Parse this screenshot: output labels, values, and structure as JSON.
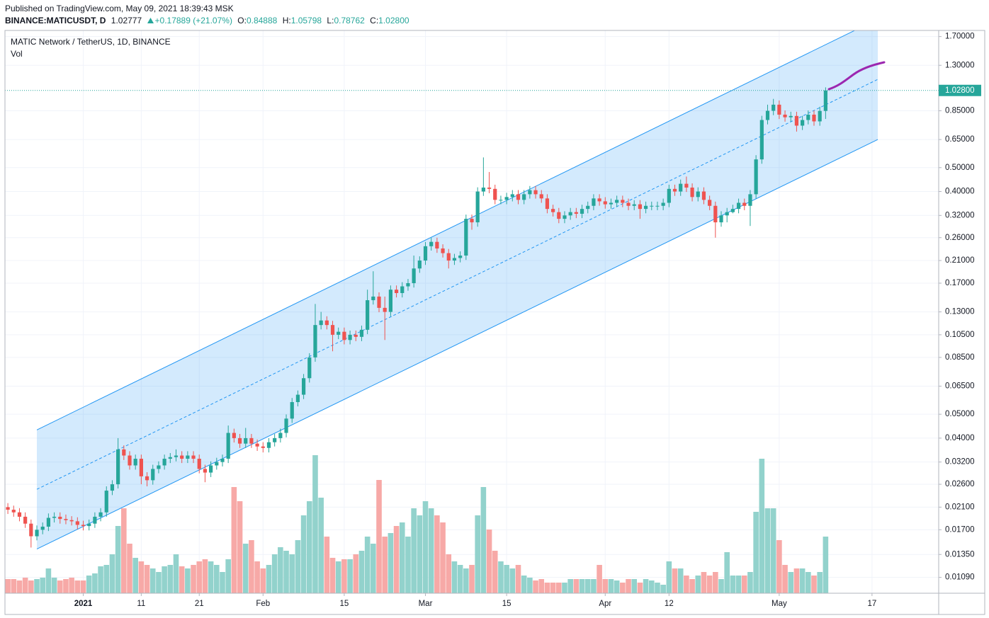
{
  "header": {
    "published": "Published on TradingView.com, May 09, 2021 18:39:43 MSK",
    "symbol": "BINANCE:MATICUSDT, D",
    "price": "1.02777",
    "change": "+0.17889 (+21.07%)",
    "ohlc_keys": [
      "O:",
      "H:",
      "L:",
      "C:"
    ]
  },
  "chart_data": {
    "type": "candlestick",
    "title": "MATIC Network / TetherUS, 1D, BINANCE",
    "volume_title": "Vol",
    "log_scale": true,
    "grid": true,
    "up_color": "#26a69a",
    "down_color": "#ef5350",
    "up_volume_color": "#92d2cc",
    "down_volume_color": "#f7a9a7",
    "xlim": [
      "2020-12-18T12:00",
      "2021-05-28T12:00"
    ],
    "xticks": [
      {
        "value": "2021-01-01",
        "label": "2021"
      },
      {
        "value": "2021-01-11",
        "label": "11"
      },
      {
        "value": "2021-01-21",
        "label": "21"
      },
      {
        "value": "2021-02-01",
        "label": "Feb"
      },
      {
        "value": "2021-02-15",
        "label": "15"
      },
      {
        "value": "2021-03-01",
        "label": "Mar"
      },
      {
        "value": "2021-03-15",
        "label": "15"
      },
      {
        "value": "2021-04-01",
        "label": "Apr"
      },
      {
        "value": "2021-04-12",
        "label": "12"
      },
      {
        "value": "2021-05-01",
        "label": "May"
      },
      {
        "value": "2021-05-17",
        "label": "17"
      }
    ],
    "ylim": [
      0.0094,
      1.8
    ],
    "yticks": [
      {
        "value": 1.7,
        "label": "1.70000"
      },
      {
        "value": 1.3,
        "label": "1.30000"
      },
      {
        "value": 0.85,
        "label": "0.85000"
      },
      {
        "value": 0.65,
        "label": "0.65000"
      },
      {
        "value": 0.5,
        "label": "0.50000"
      },
      {
        "value": 0.4,
        "label": "0.40000"
      },
      {
        "value": 0.32,
        "label": "0.32000"
      },
      {
        "value": 0.26,
        "label": "0.26000"
      },
      {
        "value": 0.21,
        "label": "0.21000"
      },
      {
        "value": 0.17,
        "label": "0.17000"
      },
      {
        "value": 0.13,
        "label": "0.13000"
      },
      {
        "value": 0.105,
        "label": "0.10500"
      },
      {
        "value": 0.085,
        "label": "0.08500"
      },
      {
        "value": 0.065,
        "label": "0.06500"
      },
      {
        "value": 0.05,
        "label": "0.05000"
      },
      {
        "value": 0.04,
        "label": "0.04000"
      },
      {
        "value": 0.032,
        "label": "0.03200"
      },
      {
        "value": 0.026,
        "label": "0.02600"
      },
      {
        "value": 0.021,
        "label": "0.02100"
      },
      {
        "value": 0.017,
        "label": "0.01700"
      },
      {
        "value": 0.0135,
        "label": "0.01350"
      },
      {
        "value": 0.0109,
        "label": "0.01090"
      }
    ],
    "volume_lim": [
      0,
      220
    ],
    "last_price": {
      "value": 1.028,
      "label": "1.02800"
    },
    "channel": {
      "x": [
        "2020-12-24",
        "2021-05-18"
      ],
      "upper": [
        0.0432,
        2.0
      ],
      "middle": [
        0.0248,
        1.14
      ],
      "lower": [
        0.0142,
        0.65
      ],
      "color": "#2196f3"
    },
    "x": [
      "2020-12-19",
      "2020-12-20",
      "2020-12-21",
      "2020-12-22",
      "2020-12-23",
      "2020-12-24",
      "2020-12-25",
      "2020-12-26",
      "2020-12-27",
      "2020-12-28",
      "2020-12-29",
      "2020-12-30",
      "2020-12-31",
      "2021-01-01",
      "2021-01-02",
      "2021-01-03",
      "2021-01-04",
      "2021-01-05",
      "2021-01-06",
      "2021-01-07",
      "2021-01-08",
      "2021-01-09",
      "2021-01-10",
      "2021-01-11",
      "2021-01-12",
      "2021-01-13",
      "2021-01-14",
      "2021-01-15",
      "2021-01-16",
      "2021-01-17",
      "2021-01-18",
      "2021-01-19",
      "2021-01-20",
      "2021-01-21",
      "2021-01-22",
      "2021-01-23",
      "2021-01-24",
      "2021-01-25",
      "2021-01-26",
      "2021-01-27",
      "2021-01-28",
      "2021-01-29",
      "2021-01-30",
      "2021-01-31",
      "2021-02-01",
      "2021-02-02",
      "2021-02-03",
      "2021-02-04",
      "2021-02-05",
      "2021-02-06",
      "2021-02-07",
      "2021-02-08",
      "2021-02-09",
      "2021-02-10",
      "2021-02-11",
      "2021-02-12",
      "2021-02-13",
      "2021-02-14",
      "2021-02-15",
      "2021-02-16",
      "2021-02-17",
      "2021-02-18",
      "2021-02-19",
      "2021-02-20",
      "2021-02-21",
      "2021-02-22",
      "2021-02-23",
      "2021-02-24",
      "2021-02-25",
      "2021-02-26",
      "2021-02-27",
      "2021-02-28",
      "2021-03-01",
      "2021-03-02",
      "2021-03-03",
      "2021-03-04",
      "2021-03-05",
      "2021-03-06",
      "2021-03-07",
      "2021-03-08",
      "2021-03-09",
      "2021-03-10",
      "2021-03-11",
      "2021-03-12",
      "2021-03-13",
      "2021-03-14",
      "2021-03-15",
      "2021-03-16",
      "2021-03-17",
      "2021-03-18",
      "2021-03-19",
      "2021-03-20",
      "2021-03-21",
      "2021-03-22",
      "2021-03-23",
      "2021-03-24",
      "2021-03-25",
      "2021-03-26",
      "2021-03-27",
      "2021-03-28",
      "2021-03-29",
      "2021-03-30",
      "2021-03-31",
      "2021-04-01",
      "2021-04-02",
      "2021-04-03",
      "2021-04-04",
      "2021-04-05",
      "2021-04-06",
      "2021-04-07",
      "2021-04-08",
      "2021-04-09",
      "2021-04-10",
      "2021-04-11",
      "2021-04-12",
      "2021-04-13",
      "2021-04-14",
      "2021-04-15",
      "2021-04-16",
      "2021-04-17",
      "2021-04-18",
      "2021-04-19",
      "2021-04-20",
      "2021-04-21",
      "2021-04-22",
      "2021-04-23",
      "2021-04-24",
      "2021-04-25",
      "2021-04-26",
      "2021-04-27",
      "2021-04-28",
      "2021-04-29",
      "2021-04-30",
      "2021-05-01",
      "2021-05-02",
      "2021-05-03",
      "2021-05-04",
      "2021-05-05",
      "2021-05-06",
      "2021-05-07",
      "2021-05-08",
      "2021-05-09"
    ],
    "open": [
      0.021,
      0.0205,
      0.02,
      0.0192,
      0.018,
      0.016,
      0.017,
      0.0175,
      0.019,
      0.0192,
      0.0188,
      0.0186,
      0.0184,
      0.0178,
      0.0176,
      0.018,
      0.0192,
      0.02,
      0.0245,
      0.026,
      0.036,
      0.034,
      0.031,
      0.033,
      0.028,
      0.027,
      0.03,
      0.031,
      0.033,
      0.0335,
      0.034,
      0.033,
      0.034,
      0.033,
      0.03,
      0.029,
      0.031,
      0.032,
      0.033,
      0.042,
      0.04,
      0.038,
      0.04,
      0.038,
      0.037,
      0.0365,
      0.0385,
      0.04,
      0.042,
      0.048,
      0.056,
      0.06,
      0.07,
      0.085,
      0.115,
      0.12,
      0.115,
      0.105,
      0.108,
      0.1,
      0.105,
      0.103,
      0.11,
      0.145,
      0.15,
      0.135,
      0.13,
      0.16,
      0.155,
      0.165,
      0.17,
      0.195,
      0.21,
      0.24,
      0.25,
      0.235,
      0.225,
      0.21,
      0.215,
      0.22,
      0.31,
      0.3,
      0.4,
      0.415,
      0.41,
      0.37,
      0.37,
      0.38,
      0.39,
      0.37,
      0.39,
      0.405,
      0.39,
      0.375,
      0.34,
      0.33,
      0.31,
      0.32,
      0.33,
      0.325,
      0.34,
      0.35,
      0.375,
      0.365,
      0.355,
      0.36,
      0.37,
      0.36,
      0.35,
      0.355,
      0.34,
      0.35,
      0.35,
      0.35,
      0.36,
      0.41,
      0.4,
      0.43,
      0.415,
      0.38,
      0.4,
      0.37,
      0.35,
      0.3,
      0.32,
      0.33,
      0.34,
      0.36,
      0.35,
      0.39,
      0.54,
      0.78,
      0.85,
      0.9,
      0.82,
      0.8,
      0.81,
      0.74,
      0.78,
      0.82,
      0.77,
      0.84888
    ],
    "high": [
      0.0218,
      0.0213,
      0.0208,
      0.02,
      0.0187,
      0.0177,
      0.0182,
      0.0198,
      0.02,
      0.02,
      0.0196,
      0.0193,
      0.0191,
      0.0185,
      0.0187,
      0.02,
      0.0208,
      0.0255,
      0.027,
      0.04,
      0.0374,
      0.0354,
      0.0343,
      0.0343,
      0.0291,
      0.0312,
      0.0322,
      0.0343,
      0.0348,
      0.036,
      0.0354,
      0.0354,
      0.0354,
      0.0343,
      0.0312,
      0.0322,
      0.0333,
      0.0343,
      0.045,
      0.0437,
      0.0416,
      0.044,
      0.0416,
      0.0395,
      0.0385,
      0.04,
      0.0416,
      0.0437,
      0.0499,
      0.0582,
      0.0624,
      0.0728,
      0.0884,
      0.14,
      0.13,
      0.1248,
      0.1196,
      0.1123,
      0.1123,
      0.1092,
      0.1092,
      0.1144,
      0.16,
      0.19,
      0.156,
      0.15,
      0.1664,
      0.1664,
      0.1716,
      0.1768,
      0.22,
      0.2184,
      0.2496,
      0.26,
      0.26,
      0.2444,
      0.234,
      0.2236,
      0.2288,
      0.3224,
      0.3224,
      0.416,
      0.55,
      0.48,
      0.4264,
      0.3848,
      0.3952,
      0.4056,
      0.4056,
      0.4056,
      0.4212,
      0.4212,
      0.4056,
      0.39,
      0.3536,
      0.3432,
      0.3328,
      0.3432,
      0.3432,
      0.3536,
      0.364,
      0.39,
      0.39,
      0.3796,
      0.3744,
      0.3848,
      0.3848,
      0.3744,
      0.3692,
      0.3692,
      0.364,
      0.364,
      0.364,
      0.3744,
      0.4264,
      0.4264,
      0.4472,
      0.46,
      0.4316,
      0.416,
      0.416,
      0.3848,
      0.364,
      0.3328,
      0.3432,
      0.3536,
      0.3744,
      0.3744,
      0.4056,
      0.5616,
      0.8112,
      0.9,
      0.95,
      0.936,
      0.8528,
      0.8424,
      0.8424,
      0.8112,
      0.8528,
      0.8528,
      0.8829,
      1.05798
    ],
    "low": [
      0.0197,
      0.0192,
      0.0184,
      0.0173,
      0.0144,
      0.0154,
      0.0163,
      0.0168,
      0.0182,
      0.018,
      0.0179,
      0.0177,
      0.0171,
      0.0169,
      0.0169,
      0.0173,
      0.0184,
      0.0192,
      0.0235,
      0.025,
      0.0326,
      0.0298,
      0.0298,
      0.026,
      0.0255,
      0.0259,
      0.0288,
      0.0298,
      0.0317,
      0.0322,
      0.0317,
      0.0317,
      0.0317,
      0.0288,
      0.0265,
      0.0278,
      0.0298,
      0.0307,
      0.0317,
      0.0384,
      0.0365,
      0.0365,
      0.0365,
      0.0355,
      0.035,
      0.035,
      0.037,
      0.0384,
      0.0403,
      0.0461,
      0.0538,
      0.0576,
      0.0672,
      0.0816,
      0.1104,
      0.1104,
      0.09,
      0.1008,
      0.096,
      0.096,
      0.0989,
      0.0989,
      0.1056,
      0.1392,
      0.1296,
      0.1,
      0.1248,
      0.1488,
      0.1488,
      0.1584,
      0.1632,
      0.1872,
      0.2016,
      0.2304,
      0.2256,
      0.216,
      0.195,
      0.2016,
      0.2064,
      0.2112,
      0.28,
      0.288,
      0.384,
      0.3936,
      0.3552,
      0.3552,
      0.3552,
      0.3648,
      0.3552,
      0.3552,
      0.3744,
      0.3744,
      0.36,
      0.3264,
      0.3168,
      0.2976,
      0.2976,
      0.3072,
      0.312,
      0.312,
      0.3264,
      0.336,
      0.3504,
      0.3408,
      0.3408,
      0.3456,
      0.3456,
      0.336,
      0.336,
      0.31,
      0.3264,
      0.336,
      0.336,
      0.336,
      0.3456,
      0.384,
      0.384,
      0.3984,
      0.3648,
      0.3648,
      0.3552,
      0.336,
      0.26,
      0.288,
      0.3,
      0.3264,
      0.3264,
      0.336,
      0.29,
      0.3744,
      0.5184,
      0.7488,
      0.816,
      0.7872,
      0.768,
      0.768,
      0.7,
      0.7104,
      0.7488,
      0.7392,
      0.7392,
      0.78762
    ],
    "close": [
      0.0205,
      0.02,
      0.0192,
      0.018,
      0.016,
      0.017,
      0.0175,
      0.019,
      0.0192,
      0.0188,
      0.0186,
      0.0184,
      0.0178,
      0.0176,
      0.018,
      0.0192,
      0.02,
      0.0245,
      0.026,
      0.036,
      0.034,
      0.031,
      0.033,
      0.028,
      0.027,
      0.03,
      0.031,
      0.033,
      0.0335,
      0.034,
      0.033,
      0.034,
      0.033,
      0.03,
      0.029,
      0.031,
      0.032,
      0.033,
      0.042,
      0.04,
      0.038,
      0.04,
      0.038,
      0.037,
      0.0365,
      0.0385,
      0.04,
      0.042,
      0.048,
      0.056,
      0.06,
      0.07,
      0.085,
      0.115,
      0.12,
      0.115,
      0.105,
      0.108,
      0.1,
      0.105,
      0.103,
      0.11,
      0.145,
      0.15,
      0.135,
      0.13,
      0.16,
      0.155,
      0.165,
      0.17,
      0.195,
      0.21,
      0.24,
      0.25,
      0.235,
      0.225,
      0.21,
      0.215,
      0.22,
      0.31,
      0.3,
      0.4,
      0.415,
      0.41,
      0.37,
      0.37,
      0.38,
      0.39,
      0.37,
      0.39,
      0.405,
      0.39,
      0.375,
      0.34,
      0.33,
      0.31,
      0.32,
      0.33,
      0.325,
      0.34,
      0.35,
      0.375,
      0.365,
      0.355,
      0.36,
      0.37,
      0.36,
      0.35,
      0.355,
      0.34,
      0.35,
      0.35,
      0.35,
      0.36,
      0.41,
      0.4,
      0.43,
      0.415,
      0.38,
      0.4,
      0.37,
      0.35,
      0.3,
      0.32,
      0.33,
      0.34,
      0.36,
      0.35,
      0.39,
      0.54,
      0.78,
      0.85,
      0.9,
      0.82,
      0.8,
      0.81,
      0.74,
      0.78,
      0.82,
      0.77,
      0.84888,
      1.028
    ],
    "volume": [
      20,
      20,
      18,
      22,
      18,
      20,
      22,
      35,
      22,
      18,
      20,
      22,
      18,
      18,
      25,
      28,
      38,
      40,
      55,
      95,
      120,
      70,
      50,
      45,
      40,
      35,
      30,
      38,
      40,
      55,
      38,
      35,
      40,
      45,
      48,
      45,
      40,
      30,
      48,
      150,
      130,
      70,
      75,
      45,
      35,
      40,
      55,
      65,
      60,
      55,
      75,
      110,
      130,
      195,
      135,
      80,
      50,
      45,
      48,
      48,
      55,
      60,
      80,
      70,
      160,
      80,
      85,
      95,
      100,
      80,
      120,
      110,
      130,
      120,
      110,
      100,
      55,
      45,
      40,
      35,
      40,
      110,
      150,
      90,
      60,
      45,
      40,
      35,
      40,
      25,
      22,
      18,
      20,
      15,
      15,
      15,
      15,
      20,
      20,
      20,
      20,
      20,
      40,
      20,
      20,
      18,
      15,
      20,
      20,
      15,
      20,
      18,
      15,
      12,
      45,
      35,
      35,
      25,
      20,
      25,
      30,
      25,
      30,
      20,
      58,
      25,
      25,
      25,
      30,
      115,
      190,
      120,
      120,
      75,
      40,
      30,
      35,
      35,
      30,
      25,
      30,
      80
    ]
  }
}
